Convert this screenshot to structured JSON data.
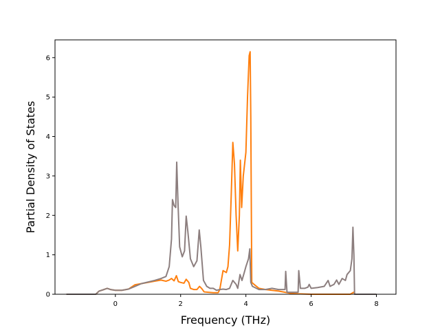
{
  "chart_data": {
    "type": "line",
    "title": "",
    "xlabel": "Frequency (THz)",
    "ylabel": "Partial Density of States",
    "xlim": [
      -1.85,
      8.6
    ],
    "ylim": [
      0,
      6.45
    ],
    "xticks": [
      0,
      2,
      4,
      6,
      8
    ],
    "yticks": [
      0,
      1,
      2,
      3,
      4,
      5,
      6
    ],
    "grid": false,
    "legend": "none",
    "series": [
      {
        "color": "#ff7f0e",
        "points": [
          [
            -1.5,
            0.0
          ],
          [
            -0.6,
            0.0
          ],
          [
            -0.5,
            0.08
          ],
          [
            -0.35,
            0.12
          ],
          [
            -0.25,
            0.15
          ],
          [
            -0.15,
            0.12
          ],
          [
            0.0,
            0.1
          ],
          [
            0.2,
            0.1
          ],
          [
            0.4,
            0.13
          ],
          [
            0.6,
            0.24
          ],
          [
            0.8,
            0.27
          ],
          [
            1.0,
            0.3
          ],
          [
            1.2,
            0.33
          ],
          [
            1.4,
            0.36
          ],
          [
            1.55,
            0.33
          ],
          [
            1.65,
            0.36
          ],
          [
            1.72,
            0.4
          ],
          [
            1.8,
            0.34
          ],
          [
            1.87,
            0.47
          ],
          [
            1.93,
            0.32
          ],
          [
            2.0,
            0.3
          ],
          [
            2.1,
            0.28
          ],
          [
            2.17,
            0.38
          ],
          [
            2.25,
            0.3
          ],
          [
            2.3,
            0.15
          ],
          [
            2.4,
            0.12
          ],
          [
            2.5,
            0.12
          ],
          [
            2.58,
            0.2
          ],
          [
            2.65,
            0.14
          ],
          [
            2.72,
            0.06
          ],
          [
            2.85,
            0.05
          ],
          [
            3.0,
            0.04
          ],
          [
            3.15,
            0.04
          ],
          [
            3.2,
            0.12
          ],
          [
            3.3,
            0.6
          ],
          [
            3.4,
            0.55
          ],
          [
            3.45,
            0.7
          ],
          [
            3.5,
            1.25
          ],
          [
            3.55,
            2.5
          ],
          [
            3.6,
            3.85
          ],
          [
            3.65,
            3.3
          ],
          [
            3.7,
            2.0
          ],
          [
            3.75,
            1.1
          ],
          [
            3.8,
            2.0
          ],
          [
            3.83,
            3.4
          ],
          [
            3.87,
            2.2
          ],
          [
            3.92,
            3.0
          ],
          [
            4.0,
            3.6
          ],
          [
            4.05,
            5.0
          ],
          [
            4.1,
            6.05
          ],
          [
            4.13,
            6.15
          ],
          [
            4.15,
            4.5
          ],
          [
            4.18,
            0.3
          ],
          [
            4.25,
            0.25
          ],
          [
            4.4,
            0.15
          ],
          [
            4.6,
            0.12
          ],
          [
            4.8,
            0.1
          ],
          [
            5.0,
            0.08
          ],
          [
            5.2,
            0.05
          ],
          [
            5.4,
            0.02
          ],
          [
            5.6,
            0.01
          ],
          [
            6.0,
            0.0
          ],
          [
            7.2,
            0.0
          ],
          [
            7.3,
            0.05
          ],
          [
            7.35,
            0.0
          ],
          [
            8.0,
            0.0
          ]
        ]
      },
      {
        "color": "#8c7e7e",
        "points": [
          [
            -1.5,
            0.0
          ],
          [
            -0.6,
            0.0
          ],
          [
            -0.5,
            0.08
          ],
          [
            -0.35,
            0.12
          ],
          [
            -0.25,
            0.15
          ],
          [
            -0.15,
            0.12
          ],
          [
            0.0,
            0.1
          ],
          [
            0.2,
            0.1
          ],
          [
            0.4,
            0.13
          ],
          [
            0.6,
            0.2
          ],
          [
            0.8,
            0.27
          ],
          [
            1.0,
            0.31
          ],
          [
            1.2,
            0.35
          ],
          [
            1.4,
            0.4
          ],
          [
            1.55,
            0.45
          ],
          [
            1.65,
            0.7
          ],
          [
            1.72,
            1.4
          ],
          [
            1.75,
            2.4
          ],
          [
            1.8,
            2.25
          ],
          [
            1.85,
            2.2
          ],
          [
            1.88,
            3.35
          ],
          [
            1.92,
            2.3
          ],
          [
            1.97,
            1.2
          ],
          [
            2.05,
            0.95
          ],
          [
            2.12,
            1.1
          ],
          [
            2.17,
            1.98
          ],
          [
            2.22,
            1.6
          ],
          [
            2.3,
            0.9
          ],
          [
            2.4,
            0.7
          ],
          [
            2.5,
            0.85
          ],
          [
            2.57,
            1.63
          ],
          [
            2.62,
            1.2
          ],
          [
            2.7,
            0.35
          ],
          [
            2.8,
            0.2
          ],
          [
            2.9,
            0.15
          ],
          [
            3.0,
            0.15
          ],
          [
            3.1,
            0.1
          ],
          [
            3.2,
            0.12
          ],
          [
            3.3,
            0.13
          ],
          [
            3.4,
            0.12
          ],
          [
            3.5,
            0.15
          ],
          [
            3.6,
            0.35
          ],
          [
            3.7,
            0.25
          ],
          [
            3.75,
            0.15
          ],
          [
            3.82,
            0.5
          ],
          [
            3.88,
            0.35
          ],
          [
            3.95,
            0.55
          ],
          [
            4.0,
            0.7
          ],
          [
            4.08,
            0.9
          ],
          [
            4.12,
            1.15
          ],
          [
            4.15,
            0.3
          ],
          [
            4.2,
            0.2
          ],
          [
            4.4,
            0.12
          ],
          [
            4.6,
            0.12
          ],
          [
            4.8,
            0.15
          ],
          [
            5.0,
            0.12
          ],
          [
            5.2,
            0.12
          ],
          [
            5.22,
            0.58
          ],
          [
            5.26,
            0.05
          ],
          [
            5.6,
            0.05
          ],
          [
            5.62,
            0.6
          ],
          [
            5.67,
            0.15
          ],
          [
            5.8,
            0.15
          ],
          [
            5.9,
            0.18
          ],
          [
            5.94,
            0.25
          ],
          [
            6.0,
            0.15
          ],
          [
            6.2,
            0.17
          ],
          [
            6.4,
            0.2
          ],
          [
            6.52,
            0.35
          ],
          [
            6.58,
            0.2
          ],
          [
            6.7,
            0.25
          ],
          [
            6.78,
            0.36
          ],
          [
            6.85,
            0.25
          ],
          [
            6.95,
            0.4
          ],
          [
            7.05,
            0.35
          ],
          [
            7.1,
            0.5
          ],
          [
            7.2,
            0.6
          ],
          [
            7.25,
            0.9
          ],
          [
            7.28,
            1.7
          ],
          [
            7.31,
            1.0
          ],
          [
            7.33,
            0.0
          ],
          [
            8.0,
            0.0
          ]
        ]
      }
    ]
  }
}
